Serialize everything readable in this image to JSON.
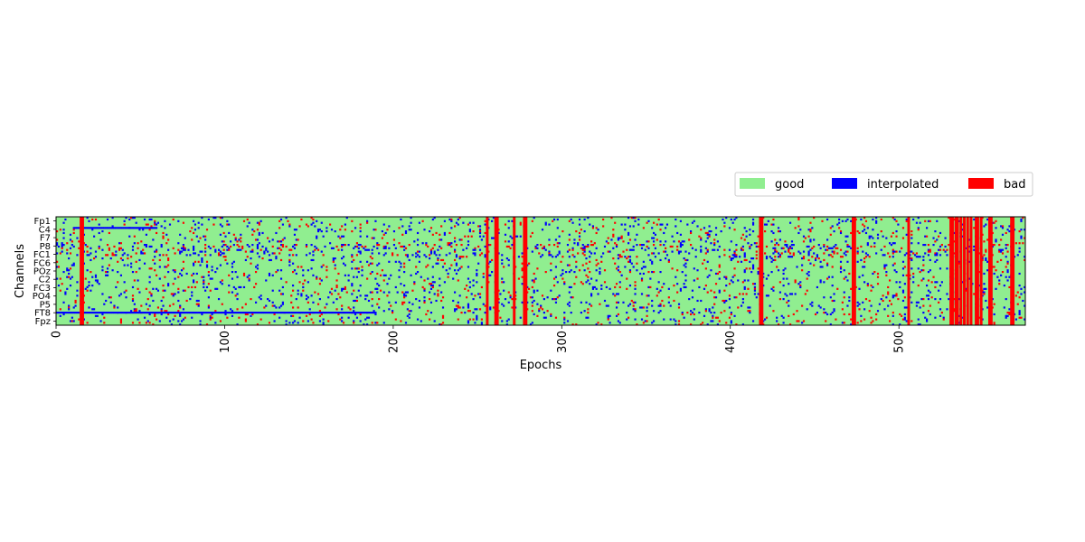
{
  "chart_data": {
    "type": "heatmap",
    "title": "",
    "xlabel": "Epochs",
    "ylabel": "Channels",
    "n_epochs": 575,
    "n_channels": 64,
    "xlim": [
      0,
      575
    ],
    "x_ticks": [
      0,
      100,
      200,
      300,
      400,
      500
    ],
    "y_tick_labels": [
      "Fp1",
      "C4",
      "F7",
      "P8",
      "FC1",
      "FC6",
      "POz",
      "C2",
      "FC3",
      "PO4",
      "P5",
      "FT8",
      "Fpz"
    ],
    "legend": {
      "placement": "upper-right",
      "entries": [
        {
          "label": "good",
          "color": "#90ee90"
        },
        {
          "label": "interpolated",
          "color": "#0000ff"
        },
        {
          "label": "bad",
          "color": "#ff0000"
        }
      ]
    },
    "bad_epochs": [
      14,
      15,
      255,
      260,
      261,
      271,
      277,
      278,
      417,
      418,
      472,
      473,
      505,
      530,
      531,
      533,
      534,
      536,
      538,
      540,
      542,
      545,
      546,
      548,
      553,
      554,
      566,
      567
    ],
    "interpolated_rows": [
      {
        "channel": 56,
        "epoch_range": [
          0,
          80
        ]
      },
      {
        "channel": 56,
        "epoch_range": [
          80,
          190
        ]
      },
      {
        "channel": 6,
        "epoch_range": [
          10,
          60
        ]
      }
    ],
    "grid": false
  }
}
